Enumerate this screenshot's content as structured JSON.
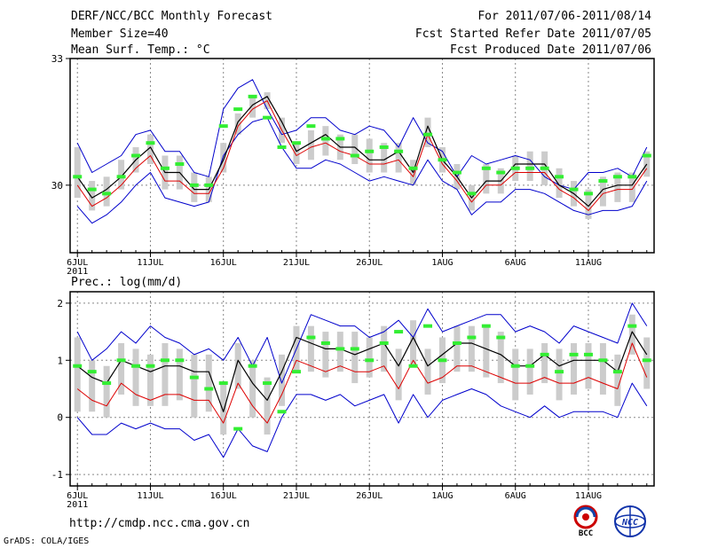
{
  "header": {
    "left": [
      "DERF/NCC/BCC Monthly Forecast",
      "Member Size=40",
      "Mean Surf. Temp.: °C"
    ],
    "right": [
      "For 2011/07/06-2011/08/14",
      "Fcst Started Refer Date 2011/07/05",
      "Fcst Produced Date 2011/07/06"
    ]
  },
  "panel2_label": "Prec.: log(mm/d)",
  "footer": {
    "url": "http://cmdp.ncc.cma.gov.cn",
    "credit": "GrADS: COLA/IGES",
    "logo_bcc": "BCC",
    "logo_ncc": "NCC"
  },
  "colors": {
    "envelope": "#0000cc",
    "mean": "#000000",
    "red": "#dd0000",
    "green": "#33ee33",
    "box": "#cccccc",
    "grid": "#888888"
  },
  "chart_data": [
    {
      "type": "line",
      "title": "Mean Surf. Temp.: °C",
      "xlabel": "",
      "ylabel": "",
      "x_ticks": [
        "6JUL",
        "11JUL",
        "16JUL",
        "21JUL",
        "26JUL",
        "1AUG",
        "6AUG",
        "11AUG"
      ],
      "x_tick_days": [
        1,
        6,
        11,
        16,
        21,
        26,
        31,
        36
      ],
      "year_label": "2011",
      "y_ticks": [
        30,
        33
      ],
      "ylim": [
        28.4,
        33
      ],
      "xlim": [
        0.5,
        40.5
      ],
      "days": [
        1,
        2,
        3,
        4,
        5,
        6,
        7,
        8,
        9,
        10,
        11,
        12,
        13,
        14,
        15,
        16,
        17,
        18,
        19,
        20,
        21,
        22,
        23,
        24,
        25,
        26,
        27,
        28,
        29,
        30,
        31,
        32,
        33,
        34,
        35,
        36,
        37,
        38,
        39,
        40
      ],
      "series": [
        {
          "name": "max",
          "values": [
            31.0,
            30.3,
            30.5,
            30.7,
            31.2,
            31.3,
            30.8,
            30.8,
            30.3,
            30.2,
            31.8,
            32.3,
            32.5,
            31.8,
            31.2,
            31.3,
            31.6,
            31.6,
            31.3,
            31.2,
            31.4,
            31.3,
            30.9,
            31.6,
            31.0,
            30.8,
            30.2,
            30.7,
            30.5,
            30.6,
            30.7,
            30.6,
            30.2,
            30.0,
            29.9,
            30.3,
            30.3,
            30.4,
            30.2,
            30.9
          ]
        },
        {
          "name": "mean",
          "values": [
            30.2,
            29.7,
            29.9,
            30.2,
            30.6,
            30.9,
            30.3,
            30.3,
            29.9,
            29.9,
            30.6,
            31.5,
            31.9,
            32.1,
            31.5,
            30.8,
            31.0,
            31.2,
            30.9,
            30.9,
            30.6,
            30.6,
            30.8,
            30.3,
            31.4,
            30.6,
            30.2,
            29.7,
            30.1,
            30.1,
            30.5,
            30.5,
            30.5,
            30.0,
            29.8,
            29.5,
            29.9,
            30.0,
            30.0,
            30.5
          ]
        },
        {
          "name": "red",
          "values": [
            30.0,
            29.5,
            29.7,
            30.0,
            30.4,
            30.7,
            30.1,
            30.1,
            29.8,
            29.8,
            30.4,
            31.4,
            31.8,
            32.0,
            31.3,
            30.7,
            30.9,
            31.0,
            30.8,
            30.7,
            30.5,
            30.5,
            30.6,
            30.2,
            31.2,
            30.5,
            30.1,
            29.6,
            30.0,
            30.0,
            30.3,
            30.3,
            30.3,
            29.9,
            29.7,
            29.4,
            29.8,
            29.9,
            29.9,
            30.4
          ]
        },
        {
          "name": "min",
          "values": [
            29.5,
            29.1,
            29.3,
            29.6,
            30.0,
            30.3,
            29.7,
            29.6,
            29.5,
            29.6,
            30.7,
            31.2,
            31.5,
            31.6,
            30.9,
            30.4,
            30.4,
            30.6,
            30.5,
            30.3,
            30.1,
            30.2,
            30.1,
            30.0,
            30.6,
            30.1,
            29.9,
            29.3,
            29.6,
            29.6,
            29.9,
            29.9,
            29.8,
            29.6,
            29.4,
            29.3,
            29.4,
            29.4,
            29.5,
            30.1
          ]
        },
        {
          "name": "green",
          "values": [
            30.2,
            29.9,
            29.8,
            30.2,
            30.7,
            31.0,
            30.4,
            30.5,
            30.0,
            30.0,
            31.4,
            31.8,
            32.1,
            31.6,
            30.9,
            31.0,
            31.4,
            31.1,
            31.1,
            30.7,
            30.8,
            30.9,
            30.8,
            30.4,
            31.2,
            30.6,
            30.3,
            29.8,
            30.4,
            30.3,
            30.4,
            30.4,
            30.4,
            30.2,
            29.9,
            29.8,
            30.1,
            30.2,
            30.2,
            30.7
          ]
        },
        {
          "name": "box_hi",
          "values": [
            30.9,
            30.1,
            30.2,
            30.6,
            30.9,
            31.2,
            30.7,
            30.7,
            30.3,
            30.2,
            31.0,
            31.7,
            32.1,
            32.2,
            31.6,
            31.0,
            31.3,
            31.4,
            31.2,
            31.2,
            31.1,
            31.0,
            31.0,
            30.6,
            31.6,
            30.9,
            30.5,
            30.0,
            30.5,
            30.4,
            30.7,
            30.8,
            30.8,
            30.4,
            30.1,
            29.9,
            30.2,
            30.3,
            30.3,
            30.8
          ]
        },
        {
          "name": "box_lo",
          "values": [
            29.7,
            29.4,
            29.5,
            29.9,
            30.3,
            30.5,
            29.9,
            29.9,
            29.6,
            29.6,
            30.3,
            31.2,
            31.6,
            31.8,
            31.0,
            30.5,
            30.6,
            30.7,
            30.6,
            30.5,
            30.3,
            30.3,
            30.3,
            30.0,
            30.9,
            30.3,
            29.9,
            29.4,
            29.8,
            29.8,
            30.1,
            30.1,
            30.0,
            29.7,
            29.5,
            29.2,
            29.5,
            29.6,
            29.6,
            30.2
          ]
        }
      ]
    },
    {
      "type": "line",
      "title": "Prec.: log(mm/d)",
      "xlabel": "",
      "ylabel": "",
      "x_ticks": [
        "6JUL",
        "11JUL",
        "16JUL",
        "21JUL",
        "26JUL",
        "1AUG",
        "6AUG",
        "11AUG"
      ],
      "x_tick_days": [
        1,
        6,
        11,
        16,
        21,
        26,
        31,
        36
      ],
      "year_label": "2011",
      "y_ticks": [
        -1,
        0,
        1,
        2
      ],
      "ylim": [
        -1.2,
        2.2
      ],
      "xlim": [
        0.5,
        40.5
      ],
      "days": [
        1,
        2,
        3,
        4,
        5,
        6,
        7,
        8,
        9,
        10,
        11,
        12,
        13,
        14,
        15,
        16,
        17,
        18,
        19,
        20,
        21,
        22,
        23,
        24,
        25,
        26,
        27,
        28,
        29,
        30,
        31,
        32,
        33,
        34,
        35,
        36,
        37,
        38,
        39,
        40
      ],
      "series": [
        {
          "name": "max",
          "values": [
            1.5,
            1.0,
            1.2,
            1.5,
            1.3,
            1.6,
            1.4,
            1.3,
            1.1,
            1.2,
            1.0,
            1.4,
            0.9,
            1.4,
            0.6,
            1.2,
            1.8,
            1.7,
            1.6,
            1.6,
            1.4,
            1.5,
            1.7,
            1.4,
            1.9,
            1.5,
            1.6,
            1.7,
            1.8,
            1.8,
            1.5,
            1.6,
            1.5,
            1.3,
            1.6,
            1.5,
            1.4,
            1.3,
            2.0,
            1.6
          ]
        },
        {
          "name": "mean",
          "values": [
            0.9,
            0.7,
            0.6,
            1.0,
            0.9,
            0.8,
            0.9,
            0.9,
            0.8,
            0.8,
            0.1,
            1.0,
            0.6,
            0.3,
            0.8,
            1.4,
            1.3,
            1.2,
            1.2,
            1.1,
            1.2,
            1.3,
            0.9,
            1.4,
            0.9,
            1.1,
            1.3,
            1.3,
            1.2,
            1.1,
            0.9,
            0.9,
            1.1,
            0.9,
            1.0,
            1.0,
            1.0,
            0.8,
            1.5,
            1.1
          ]
        },
        {
          "name": "red",
          "values": [
            0.5,
            0.3,
            0.2,
            0.6,
            0.4,
            0.3,
            0.4,
            0.4,
            0.3,
            0.3,
            -0.1,
            0.6,
            0.2,
            -0.1,
            0.4,
            1.0,
            0.9,
            0.8,
            0.9,
            0.8,
            0.8,
            0.9,
            0.5,
            1.0,
            0.6,
            0.7,
            0.9,
            0.9,
            0.8,
            0.7,
            0.6,
            0.6,
            0.7,
            0.6,
            0.6,
            0.7,
            0.6,
            0.5,
            1.3,
            0.7
          ]
        },
        {
          "name": "min",
          "values": [
            0.0,
            -0.3,
            -0.3,
            -0.1,
            -0.2,
            -0.1,
            -0.2,
            -0.2,
            -0.4,
            -0.3,
            -0.7,
            -0.2,
            -0.5,
            -0.6,
            0.0,
            0.4,
            0.4,
            0.3,
            0.4,
            0.2,
            0.3,
            0.4,
            -0.1,
            0.4,
            0.0,
            0.3,
            0.4,
            0.5,
            0.4,
            0.2,
            0.1,
            0.0,
            0.2,
            0.0,
            0.1,
            0.1,
            0.1,
            0.0,
            0.6,
            0.2
          ]
        },
        {
          "name": "green",
          "values": [
            0.9,
            0.8,
            0.6,
            1.0,
            0.9,
            0.9,
            1.0,
            1.0,
            0.7,
            0.5,
            0.6,
            -0.2,
            0.9,
            0.6,
            0.1,
            0.8,
            1.4,
            1.3,
            1.2,
            1.2,
            1.0,
            1.3,
            1.5,
            0.9,
            1.6,
            1.0,
            1.3,
            1.4,
            1.6,
            1.4,
            0.9,
            0.9,
            1.1,
            0.8,
            1.1,
            1.1,
            1.0,
            0.8,
            1.6,
            1.0
          ]
        },
        {
          "name": "box_hi",
          "values": [
            1.4,
            1.0,
            0.9,
            1.3,
            1.2,
            1.1,
            1.3,
            1.2,
            1.1,
            1.1,
            0.6,
            1.3,
            1.0,
            0.7,
            1.1,
            1.6,
            1.6,
            1.5,
            1.5,
            1.5,
            1.4,
            1.6,
            1.2,
            1.7,
            1.2,
            1.4,
            1.6,
            1.6,
            1.6,
            1.5,
            1.2,
            1.2,
            1.3,
            1.2,
            1.3,
            1.3,
            1.3,
            1.1,
            1.8,
            1.4
          ]
        },
        {
          "name": "box_lo",
          "values": [
            0.1,
            0.1,
            0.0,
            0.4,
            0.2,
            0.2,
            0.2,
            0.3,
            0.0,
            0.1,
            -0.3,
            0.5,
            0.0,
            -0.3,
            0.2,
            0.8,
            0.8,
            0.7,
            0.8,
            0.6,
            0.7,
            0.8,
            0.3,
            0.9,
            0.4,
            0.6,
            0.8,
            0.8,
            0.7,
            0.6,
            0.3,
            0.4,
            0.6,
            0.3,
            0.4,
            0.5,
            0.4,
            0.2,
            1.1,
            0.5
          ]
        }
      ]
    }
  ]
}
